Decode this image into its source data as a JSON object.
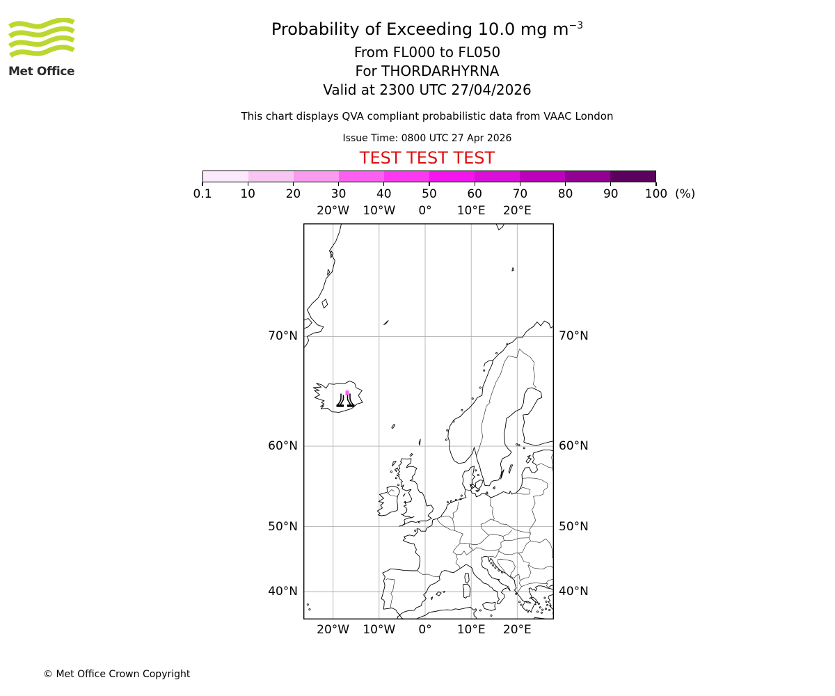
{
  "header": {
    "logo_text": "Met Office",
    "logo_green": "#bdd731",
    "title_main": "Probability of Exceeding 10.0 mg m",
    "title_sup": "−3",
    "subtitle_lines": [
      "From FL000 to FL050",
      "For THORDARHYRNA",
      "Valid at 2300 UTC 27/04/2026"
    ],
    "qva_note": "This chart displays QVA compliant probabilistic data from VAAC London",
    "issue_time": "Issue Time: 0800 UTC 27 Apr 2026",
    "test_banner": "TEST TEST TEST",
    "test_color": "#df0f0f"
  },
  "colorbar": {
    "unit": "(%)",
    "tick_labels": [
      "0.1",
      "10",
      "20",
      "30",
      "40",
      "50",
      "60",
      "70",
      "80",
      "90",
      "100"
    ],
    "segment_colors": [
      "#fce9fb",
      "#f9c6f3",
      "#fa9bef",
      "#fd5ff2",
      "#fc38f1",
      "#f414ed",
      "#da10da",
      "#bc01bc",
      "#930093",
      "#5c015e"
    ]
  },
  "map": {
    "lon_ticks": [
      {
        "label": "20°W",
        "lon": -20
      },
      {
        "label": "10°W",
        "lon": -10
      },
      {
        "label": "0°",
        "lon": 0
      },
      {
        "label": "10°E",
        "lon": 10
      },
      {
        "label": "20°E",
        "lon": 20
      }
    ],
    "lat_ticks": [
      {
        "label": "70°N",
        "lat": 70
      },
      {
        "label": "60°N",
        "lat": 60
      },
      {
        "label": "50°N",
        "lat": 50
      },
      {
        "label": "40°N",
        "lat": 40
      }
    ],
    "volcano": {
      "name": "THORDARHYRNA"
    },
    "contour_colors": [
      "#f9c6f3",
      "#fb5ff0"
    ]
  },
  "footer": {
    "copyright": "© Met Office Crown Copyright"
  }
}
